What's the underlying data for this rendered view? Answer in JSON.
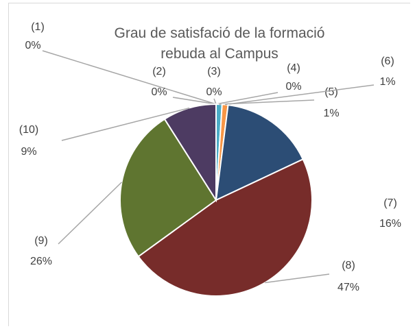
{
  "chart_data": {
    "type": "pie",
    "title": "Grau de satisfació de la formació rebuda al Campus",
    "categories": [
      "(1)",
      "(2)",
      "(3)",
      "(4)",
      "(5)",
      "(6)",
      "(7)",
      "(8)",
      "(9)",
      "(10)"
    ],
    "values": [
      0,
      0,
      0,
      0,
      1,
      1,
      16,
      47,
      26,
      9
    ],
    "value_labels": [
      "0%",
      "0%",
      "0%",
      "0%",
      "1%",
      "1%",
      "16%",
      "47%",
      "26%",
      "9%"
    ],
    "colors": [
      "#4f81bd",
      "#c0504d",
      "#9bbb59",
      "#8064a2",
      "#4bacc6",
      "#f79646",
      "#2c4d75",
      "#772c2a",
      "#5f7530",
      "#4d3b62"
    ]
  }
}
